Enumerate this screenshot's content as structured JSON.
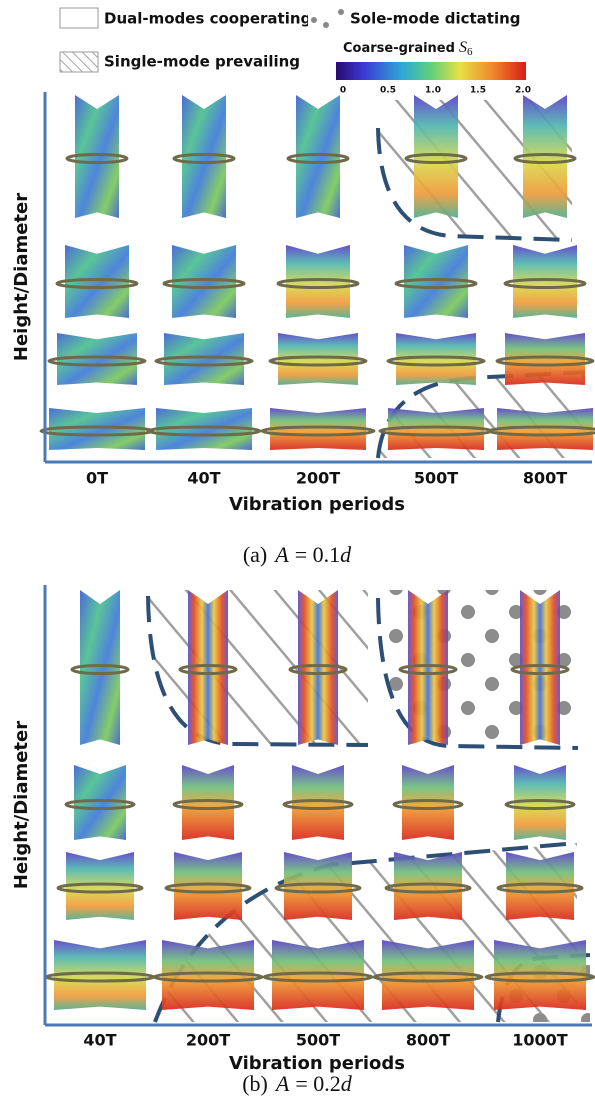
{
  "legend": {
    "dual": "Dual-modes cooperating",
    "sole": "Sole-mode dictating",
    "single": "Single-mode prevailing"
  },
  "colorbar": {
    "label": "Coarse-grained",
    "symbol": "S",
    "subscript": "6",
    "ticks": [
      "0",
      "0.5",
      "1.0",
      "1.5",
      "2.0"
    ]
  },
  "panels": [
    {
      "y_label": "Height/Diameter",
      "x_label": "Vibration periods",
      "columns": [
        "0T",
        "40T",
        "200T",
        "500T",
        "800T"
      ],
      "tag": "(a)",
      "symbol": "A",
      "equals": "= 0.1",
      "unit": "d"
    },
    {
      "y_label": "Height/Diameter",
      "x_label": "Vibration periods",
      "columns": [
        "40T",
        "200T",
        "500T",
        "800T",
        "1000T"
      ],
      "tag": "(b)",
      "symbol": "A",
      "equals": "= 0.2",
      "unit": "d"
    }
  ]
}
